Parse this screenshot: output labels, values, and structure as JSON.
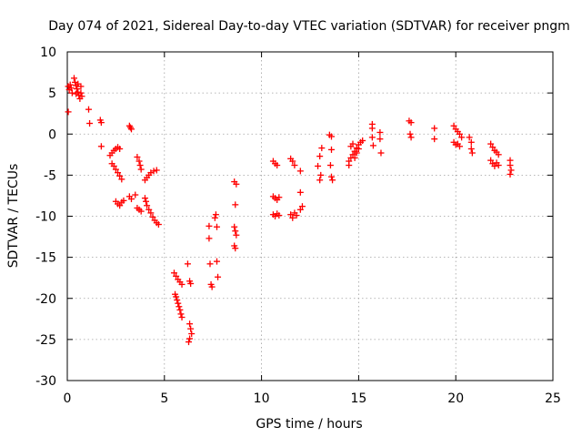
{
  "chart_data": {
    "type": "scatter",
    "title": "Day 074 of 2021, Sidereal Day-to-day VTEC variation (SDTVAR) for receiver pngm",
    "xlabel": "GPS time / hours",
    "ylabel": "SDTVAR / TECUs",
    "xlim": [
      0,
      25
    ],
    "ylim": [
      -30,
      10
    ],
    "xticks": [
      0,
      5,
      10,
      15,
      20,
      25
    ],
    "yticks": [
      -30,
      -25,
      -20,
      -15,
      -10,
      -5,
      0,
      5,
      10
    ],
    "xtick_labels": [
      "0",
      "5",
      "10",
      "15",
      "20",
      "25"
    ],
    "ytick_labels": [
      "-30",
      "-25",
      "-20",
      "-15",
      "-10",
      "-5",
      "0",
      "5",
      "10"
    ],
    "grid": true,
    "marker": "plus",
    "marker_color": "#ff0000",
    "series": [
      {
        "name": "SDTVAR",
        "points": [
          [
            0.05,
            2.7
          ],
          [
            0.05,
            5.8
          ],
          [
            0.1,
            5.4
          ],
          [
            0.15,
            6.0
          ],
          [
            0.2,
            5.6
          ],
          [
            0.25,
            5.0
          ],
          [
            0.35,
            6.8
          ],
          [
            0.4,
            6.3
          ],
          [
            0.45,
            5.9
          ],
          [
            0.5,
            5.5
          ],
          [
            0.55,
            5.1
          ],
          [
            0.6,
            4.7
          ],
          [
            0.65,
            4.3
          ],
          [
            0.7,
            5.0
          ],
          [
            0.75,
            4.6
          ],
          [
            0.45,
            4.9
          ],
          [
            0.55,
            6.1
          ],
          [
            0.7,
            5.8
          ],
          [
            1.1,
            3.0
          ],
          [
            1.15,
            1.3
          ],
          [
            1.7,
            1.7
          ],
          [
            1.75,
            1.4
          ],
          [
            1.75,
            -1.5
          ],
          [
            2.2,
            -2.6
          ],
          [
            2.3,
            -2.3
          ],
          [
            2.4,
            -2.0
          ],
          [
            2.5,
            -1.8
          ],
          [
            2.6,
            -1.6
          ],
          [
            2.7,
            -1.8
          ],
          [
            2.3,
            -3.6
          ],
          [
            2.4,
            -3.9
          ],
          [
            2.5,
            -4.3
          ],
          [
            2.6,
            -4.7
          ],
          [
            2.7,
            -5.1
          ],
          [
            2.8,
            -5.5
          ],
          [
            2.5,
            -8.2
          ],
          [
            2.6,
            -8.5
          ],
          [
            2.7,
            -8.7
          ],
          [
            2.8,
            -8.3
          ],
          [
            2.9,
            -8.1
          ],
          [
            3.2,
            1.0
          ],
          [
            3.25,
            0.8
          ],
          [
            3.3,
            0.6
          ],
          [
            3.2,
            -7.6
          ],
          [
            3.3,
            -7.9
          ],
          [
            3.5,
            -7.4
          ],
          [
            3.6,
            -2.8
          ],
          [
            3.7,
            -3.3
          ],
          [
            3.75,
            -3.8
          ],
          [
            3.8,
            -4.3
          ],
          [
            3.6,
            -9.0
          ],
          [
            3.7,
            -9.2
          ],
          [
            3.8,
            -9.4
          ],
          [
            4.0,
            -5.6
          ],
          [
            4.1,
            -5.3
          ],
          [
            4.2,
            -5.0
          ],
          [
            4.3,
            -4.7
          ],
          [
            4.45,
            -4.5
          ],
          [
            4.6,
            -4.4
          ],
          [
            4.0,
            -7.8
          ],
          [
            4.05,
            -8.2
          ],
          [
            4.1,
            -8.7
          ],
          [
            4.2,
            -9.2
          ],
          [
            4.3,
            -9.6
          ],
          [
            4.4,
            -10.1
          ],
          [
            4.5,
            -10.5
          ],
          [
            4.6,
            -10.8
          ],
          [
            4.7,
            -11.0
          ],
          [
            5.5,
            -16.9
          ],
          [
            5.6,
            -17.3
          ],
          [
            5.7,
            -17.7
          ],
          [
            5.8,
            -18.0
          ],
          [
            5.9,
            -18.3
          ],
          [
            5.55,
            -19.5
          ],
          [
            5.6,
            -19.8
          ],
          [
            5.65,
            -20.2
          ],
          [
            5.7,
            -20.6
          ],
          [
            5.75,
            -21.0
          ],
          [
            5.8,
            -21.4
          ],
          [
            5.85,
            -21.9
          ],
          [
            5.9,
            -22.3
          ],
          [
            6.2,
            -15.8
          ],
          [
            6.3,
            -17.9
          ],
          [
            6.35,
            -18.2
          ],
          [
            6.3,
            -23.1
          ],
          [
            6.35,
            -23.7
          ],
          [
            6.4,
            -24.3
          ],
          [
            6.3,
            -24.9
          ],
          [
            6.25,
            -25.3
          ],
          [
            7.3,
            -11.2
          ],
          [
            7.3,
            -12.7
          ],
          [
            7.35,
            -15.8
          ],
          [
            7.4,
            -18.3
          ],
          [
            7.45,
            -18.6
          ],
          [
            7.6,
            -10.2
          ],
          [
            7.65,
            -9.8
          ],
          [
            7.7,
            -11.3
          ],
          [
            7.7,
            -15.5
          ],
          [
            7.75,
            -17.4
          ],
          [
            8.6,
            -5.8
          ],
          [
            8.7,
            -6.1
          ],
          [
            8.65,
            -8.6
          ],
          [
            8.6,
            -11.3
          ],
          [
            8.65,
            -11.8
          ],
          [
            8.7,
            -12.3
          ],
          [
            8.6,
            -13.6
          ],
          [
            8.65,
            -13.9
          ],
          [
            10.6,
            -3.3
          ],
          [
            10.7,
            -3.6
          ],
          [
            10.8,
            -3.8
          ],
          [
            10.6,
            -7.6
          ],
          [
            10.7,
            -7.8
          ],
          [
            10.8,
            -8.0
          ],
          [
            10.9,
            -7.7
          ],
          [
            10.6,
            -9.8
          ],
          [
            10.7,
            -10.0
          ],
          [
            10.8,
            -9.7
          ],
          [
            10.9,
            -9.9
          ],
          [
            11.5,
            -3.0
          ],
          [
            11.6,
            -3.3
          ],
          [
            11.7,
            -3.8
          ],
          [
            12.0,
            -4.5
          ],
          [
            11.5,
            -9.8
          ],
          [
            11.6,
            -10.2
          ],
          [
            11.7,
            -9.6
          ],
          [
            11.8,
            -9.9
          ],
          [
            12.0,
            -7.1
          ],
          [
            12.0,
            -9.2
          ],
          [
            12.1,
            -8.8
          ],
          [
            12.9,
            -3.9
          ],
          [
            13.0,
            -2.7
          ],
          [
            13.1,
            -1.7
          ],
          [
            13.05,
            -5.0
          ],
          [
            13.0,
            -5.6
          ],
          [
            13.5,
            -0.1
          ],
          [
            13.6,
            -0.3
          ],
          [
            13.6,
            -1.9
          ],
          [
            13.55,
            -3.8
          ],
          [
            13.6,
            -5.2
          ],
          [
            13.65,
            -5.6
          ],
          [
            14.5,
            -3.8
          ],
          [
            14.5,
            -3.3
          ],
          [
            14.6,
            -2.9
          ],
          [
            14.7,
            -2.5
          ],
          [
            14.8,
            -2.1
          ],
          [
            14.9,
            -1.7
          ],
          [
            15.0,
            -1.3
          ],
          [
            15.1,
            -1.0
          ],
          [
            15.2,
            -0.8
          ],
          [
            14.6,
            -1.5
          ],
          [
            14.7,
            -1.2
          ],
          [
            14.8,
            -2.9
          ],
          [
            14.9,
            -2.3
          ],
          [
            15.0,
            -1.8
          ],
          [
            15.7,
            1.2
          ],
          [
            15.7,
            0.7
          ],
          [
            15.7,
            -0.4
          ],
          [
            15.75,
            -1.4
          ],
          [
            16.1,
            0.2
          ],
          [
            16.1,
            -0.6
          ],
          [
            16.15,
            -2.3
          ],
          [
            17.6,
            1.6
          ],
          [
            17.7,
            1.4
          ],
          [
            17.65,
            0.0
          ],
          [
            17.7,
            -0.4
          ],
          [
            18.9,
            0.7
          ],
          [
            18.9,
            -0.6
          ],
          [
            19.9,
            1.0
          ],
          [
            20.0,
            0.6
          ],
          [
            20.1,
            0.3
          ],
          [
            20.2,
            0.0
          ],
          [
            20.3,
            -0.4
          ],
          [
            19.9,
            -1.0
          ],
          [
            20.0,
            -1.3
          ],
          [
            20.1,
            -1.2
          ],
          [
            20.2,
            -1.5
          ],
          [
            20.7,
            -0.4
          ],
          [
            20.8,
            -1.0
          ],
          [
            20.8,
            -1.8
          ],
          [
            20.85,
            -2.3
          ],
          [
            21.8,
            -1.2
          ],
          [
            21.9,
            -1.6
          ],
          [
            22.0,
            -2.0
          ],
          [
            22.1,
            -2.2
          ],
          [
            22.2,
            -2.5
          ],
          [
            21.8,
            -3.2
          ],
          [
            21.9,
            -3.6
          ],
          [
            22.0,
            -3.9
          ],
          [
            22.1,
            -3.5
          ],
          [
            22.2,
            -3.8
          ],
          [
            22.8,
            -3.2
          ],
          [
            22.8,
            -3.8
          ],
          [
            22.85,
            -4.4
          ],
          [
            22.8,
            -4.9
          ]
        ]
      }
    ]
  }
}
